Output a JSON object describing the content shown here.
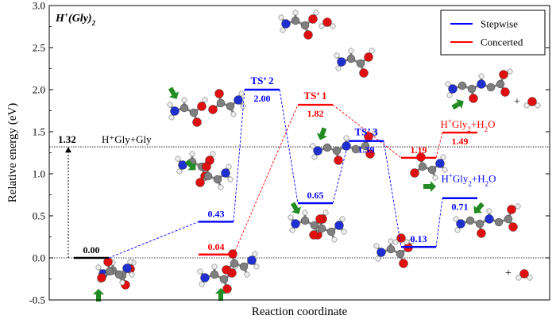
{
  "chart_data": {
    "type": "energy-profile",
    "title": "H⁺(Gly)₂",
    "title_parts": {
      "h": "H",
      "plus": "+",
      "body": "(Gly)",
      "sub": "2"
    },
    "xlabel": "Reaction coordinate",
    "ylabel": "Relative energy (eV)",
    "ylim": [
      -0.5,
      3.0
    ],
    "yticks": [
      "-0.5",
      "0.0",
      "0.5",
      "1.0",
      "1.5",
      "2.0",
      "2.5",
      "3.0"
    ],
    "ytick_values": [
      -0.5,
      0.0,
      0.5,
      1.0,
      1.5,
      2.0,
      2.5,
      3.0
    ],
    "legend": {
      "placement": "top-right",
      "entries": [
        {
          "name": "Stepwise",
          "color": "#0000ff"
        },
        {
          "name": "Concerted",
          "color": "#ff0000"
        }
      ]
    },
    "reference_line": {
      "value": 1.32,
      "value_label": "1.32",
      "label": "H⁺Gly+Gly"
    },
    "zero_line": 0.0,
    "series": [
      {
        "name": "Stepwise",
        "color": "#0000ff",
        "levels": [
          {
            "position": 0,
            "value": 0.0,
            "label": "0.00",
            "color": "#000000"
          },
          {
            "position": 1,
            "value": 0.43,
            "label": "0.43"
          },
          {
            "position": 2,
            "value": 2.0,
            "label": "2.00",
            "name": "TS’ 2"
          },
          {
            "position": 3,
            "value": 0.65,
            "label": "0.65"
          },
          {
            "position": 4,
            "value": 1.39,
            "label": "1.39",
            "name": "TS’ 3"
          },
          {
            "position": 5,
            "value": 0.13,
            "label": "0.13"
          },
          {
            "position": 6,
            "value": 0.71,
            "label": "0.71",
            "annotation": "H⁺Gly₂+H₂O"
          }
        ]
      },
      {
        "name": "Concerted",
        "color": "#ff0000",
        "levels": [
          {
            "position": 1,
            "value": 0.04,
            "label": "0.04"
          },
          {
            "position": 3,
            "value": 1.82,
            "label": "1.82",
            "name": "TS’ 1"
          },
          {
            "position": 5,
            "value": 1.19,
            "label": "1.19"
          },
          {
            "position": 6,
            "value": 1.49,
            "label": "1.49",
            "annotation": "H⁺Gly₂+H₂O"
          }
        ]
      }
    ],
    "plus_signs": [
      "+",
      "+"
    ]
  }
}
